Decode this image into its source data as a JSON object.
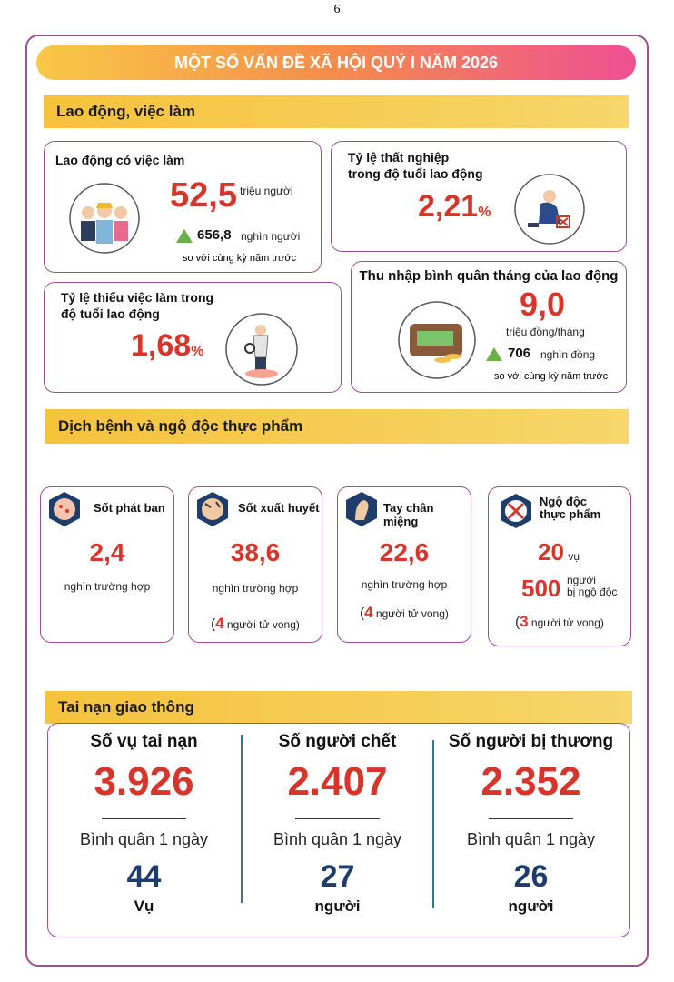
{
  "page_number": "6",
  "title": "MỘT SỐ VẤN ĐỀ XÃ HỘI QUÝ I NĂM 2026",
  "labour": {
    "heading": "Lao động, việc làm",
    "employed": {
      "label": "Lao động có việc làm",
      "value": "52,5",
      "unit": "triệu người",
      "change": "656,8",
      "change_unit": "nghìn người",
      "note": "so với cùng kỳ năm trước"
    },
    "unemployment": {
      "label_lines": [
        "Tỷ lệ thất nghiệp",
        "trong độ tuổi lao động"
      ],
      "value": "2,21",
      "unit": "%"
    },
    "underemployment": {
      "label_lines": [
        "Tỷ lệ thiếu việc làm trong",
        "độ tuổi lao động"
      ],
      "value": "1,68",
      "unit": "%"
    },
    "income": {
      "label": "Thu nhập bình quân tháng của lao động",
      "value": "9,0",
      "unit": "triệu đồng/tháng",
      "change": "706",
      "change_unit": "nghìn đồng",
      "note": "so với cùng kỳ năm trước"
    }
  },
  "disease": {
    "heading": "Dịch bệnh và ngộ độc thực phẩm",
    "cards": [
      {
        "title": "Sốt phát ban",
        "value": "2,4",
        "unit": "nghìn trường hợp"
      },
      {
        "title": "Sốt xuất huyết",
        "value": "38,6",
        "unit": "nghìn trường hợp",
        "deaths": {
          "open": "(",
          "value": "4",
          "text": "người tử vong)"
        }
      },
      {
        "title": "Tay chân miệng",
        "value": "22,6",
        "unit": "nghìn trường hợp",
        "deaths": {
          "open": "(",
          "value": "4",
          "text": "người tử vong)"
        }
      },
      {
        "title_lines": [
          "Ngộ độc",
          "thực phẩm"
        ],
        "cases": "20",
        "cases_unit": "vụ",
        "people": "500",
        "people_unit_lines": [
          "người",
          "bị ngộ độc"
        ],
        "deaths": {
          "open": "(",
          "value": "3",
          "text": "người tử vong)"
        }
      }
    ]
  },
  "traffic": {
    "heading": "Tai nạn giao thông",
    "columns": [
      {
        "title": "Số vụ tai nạn",
        "value": "3.926",
        "daily_label": "Bình quân 1 ngày",
        "daily_value": "44",
        "daily_unit": "Vụ"
      },
      {
        "title": "Số người chết",
        "value": "2.407",
        "daily_label": "Bình quân 1 ngày",
        "daily_value": "27",
        "daily_unit": "người"
      },
      {
        "title": "Số người bị thương",
        "value": "2.352",
        "daily_label": "Bình quân 1 ngày",
        "daily_value": "26",
        "daily_unit": "người"
      }
    ]
  }
}
